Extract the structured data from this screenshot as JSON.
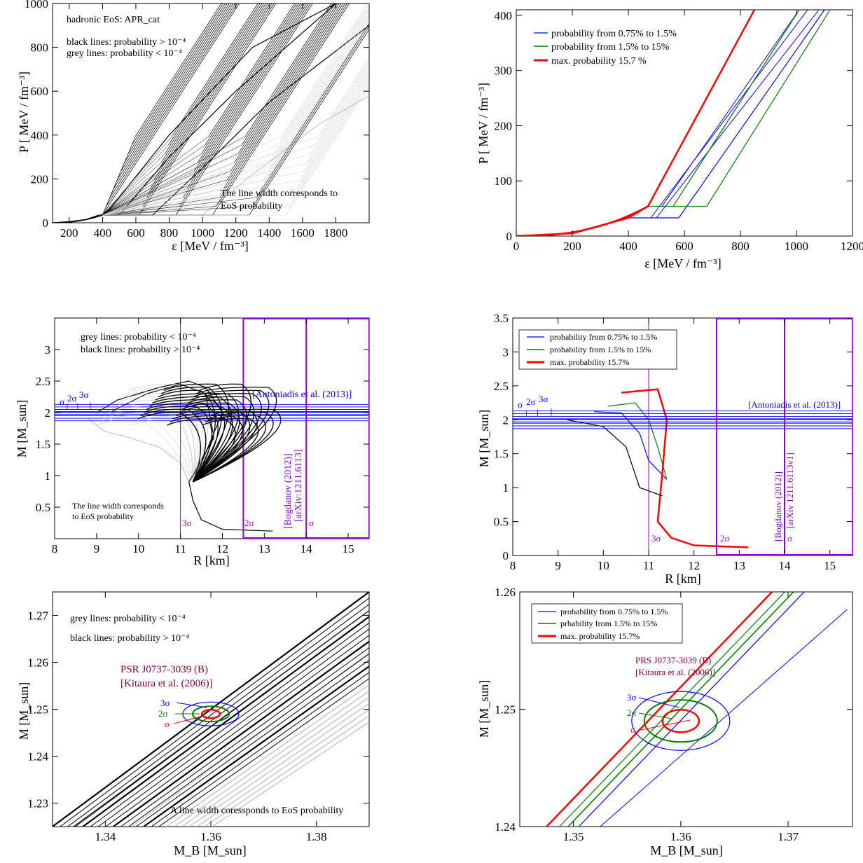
{
  "chart_data": [
    {
      "id": "p1",
      "type": "line",
      "xlabel": "ε  [MeV / fm⁻³]",
      "ylabel": "P  [ MeV / fm⁻³]",
      "xlim": [
        100,
        2000
      ],
      "ylim": [
        0,
        1000
      ],
      "xticks": [
        200,
        400,
        600,
        800,
        1000,
        1200,
        1400,
        1600,
        1800
      ],
      "yticks": [
        0,
        200,
        400,
        600,
        800,
        1000
      ],
      "annotations": [
        "hadronic EoS: APR_cat",
        "black lines: probability > 10⁻⁴",
        "grey lines: probability < 10⁻⁴",
        "The line width corresponds to",
        "EoS probability"
      ],
      "series": [
        {
          "color": "#000000",
          "x": [
            100,
            200,
            300,
            380,
            420,
            800,
            1300,
            1800
          ],
          "y": [
            0,
            5,
            15,
            35,
            40,
            400,
            800,
            1000
          ]
        },
        {
          "color": "#000000",
          "x": [
            380,
            500,
            800,
            1200,
            1800
          ],
          "y": [
            35,
            35,
            300,
            600,
            1000
          ]
        },
        {
          "color": "#000000",
          "x": [
            380,
            700,
            1000,
            1400,
            2000
          ],
          "y": [
            35,
            35,
            250,
            550,
            900
          ]
        },
        {
          "color": "#aaaaaa",
          "x": [
            380,
            1000,
            1300,
            1700,
            2000
          ],
          "y": [
            35,
            35,
            220,
            450,
            580
          ]
        }
      ]
    },
    {
      "id": "p2",
      "type": "line",
      "xlabel": "ε  [MeV / fm⁻³]",
      "ylabel": "P  [ MeV / fm⁻³]",
      "xlim": [
        0,
        1200
      ],
      "ylim": [
        0,
        410
      ],
      "xticks": [
        0,
        200,
        400,
        600,
        800,
        1000,
        1200
      ],
      "yticks": [
        0,
        100,
        200,
        300,
        400
      ],
      "series": [
        {
          "name": "probability from 0.75% to 1.5%",
          "color": "#0000ff",
          "x": [
            0,
            200,
            400,
            480,
            580,
            1100
          ],
          "y": [
            0,
            5,
            33,
            33,
            33,
            410
          ]
        },
        {
          "name": "probability from 1.5% to 15%",
          "color": "#008000",
          "x": [
            0,
            200,
            400,
            470,
            680,
            1120
          ],
          "y": [
            0,
            5,
            33,
            54,
            54,
            410
          ]
        },
        {
          "name": "max. probability 15.7 %",
          "color": "#ff0000",
          "x": [
            0,
            200,
            400,
            470,
            850
          ],
          "y": [
            0,
            5,
            33,
            54,
            410
          ]
        }
      ]
    },
    {
      "id": "p3",
      "type": "line",
      "xlabel": "R  [km]",
      "ylabel": "M  [M_sun]",
      "xlim": [
        8,
        15.5
      ],
      "ylim": [
        0,
        3.5
      ],
      "xticks": [
        8,
        9,
        10,
        11,
        12,
        13,
        14,
        15
      ],
      "yticks": [
        0.5,
        1,
        1.5,
        2,
        2.5,
        3
      ],
      "annotations": [
        "grey lines: probability < 10⁻⁴",
        "black lines: probability > 10⁻⁴",
        "The line width corresponds",
        "to EoS probability",
        "[Antoniadis et al. (2013)]",
        "[Bogdanov (2012)]",
        "[arXiv:1211.6113]",
        "σ",
        "2σ",
        "3σ"
      ],
      "series": [
        {
          "color": "#000000",
          "x": [
            13.2,
            12.0,
            11.5,
            11.3,
            11.2,
            11.5,
            12.0,
            11.6,
            11.2,
            10.5,
            9.5,
            9.0
          ],
          "y": [
            0.12,
            0.15,
            0.3,
            0.6,
            0.9,
            1.2,
            2.0,
            2.4,
            2.5,
            2.4,
            2.2,
            2.0
          ]
        },
        {
          "color": "#000000",
          "x": [
            11.2,
            11.8,
            11.6,
            11.0,
            10.2,
            9.3
          ],
          "y": [
            0.9,
            1.6,
            2.3,
            2.45,
            2.3,
            2.0
          ]
        },
        {
          "color": "#aaaaaa",
          "x": [
            11.2,
            11.0,
            10.5,
            9.8,
            9.2,
            8.8
          ],
          "y": [
            0.9,
            1.2,
            1.45,
            1.6,
            1.7,
            1.9
          ]
        }
      ]
    },
    {
      "id": "p4",
      "type": "line",
      "xlabel": "R  [km]",
      "ylabel": "M  [M_sun]",
      "xlim": [
        8,
        15.5
      ],
      "ylim": [
        0,
        3.5
      ],
      "xticks": [
        8,
        9,
        10,
        11,
        12,
        13,
        14,
        15
      ],
      "yticks": [
        0,
        0.5,
        1,
        1.5,
        2,
        2.5,
        3,
        3.5
      ],
      "annotations": [
        "[Antoniadis et al. (2013)]",
        "[Bogdanov (2012)]",
        "[arXiv 1211.6113v1]",
        "σ",
        "2σ",
        "3σ"
      ],
      "series": [
        {
          "name": "probability from 0.75% to 1.5%",
          "color": "#0000ff",
          "x": [
            11.4,
            11.0,
            10.8,
            10.4,
            9.8
          ],
          "y": [
            1.12,
            1.4,
            1.8,
            2.1,
            2.12
          ]
        },
        {
          "name": "probability from 1.5% to 15%",
          "color": "#008000",
          "x": [
            11.4,
            11.2,
            11.0,
            10.7,
            10.1
          ],
          "y": [
            1.12,
            1.6,
            2.0,
            2.25,
            2.2
          ]
        },
        {
          "name": "max. probability 15.7%",
          "color": "#ff0000",
          "x": [
            13.2,
            12.0,
            11.5,
            11.2,
            11.3,
            11.4,
            11.2,
            10.4
          ],
          "y": [
            0.12,
            0.15,
            0.26,
            0.5,
            1.2,
            2.0,
            2.45,
            2.4
          ]
        },
        {
          "color": "#000000",
          "x": [
            11.3,
            10.8,
            10.5,
            10.0,
            9.2
          ],
          "y": [
            0.88,
            1.0,
            1.6,
            1.9,
            2.0
          ]
        }
      ]
    },
    {
      "id": "p5",
      "type": "line",
      "xlabel": "M_B  [M_sun]",
      "ylabel": "M  [M_sun]",
      "xlim": [
        1.33,
        1.39
      ],
      "ylim": [
        1.225,
        1.275
      ],
      "xticks": [
        1.34,
        1.36,
        1.38
      ],
      "yticks": [
        1.23,
        1.24,
        1.25,
        1.26,
        1.27
      ],
      "annotations": [
        "grey lines: probability < 10⁻⁴",
        "black lines: probability > 10⁻⁴",
        "PSR J0737-3039 (B)",
        "[Kitaura et al. (2006)]",
        "A line width coressponds to EoS probability",
        "3σ",
        "2σ",
        "σ"
      ],
      "series": [
        {
          "color": "#000000",
          "x": [
            1.33,
            1.39
          ],
          "y": [
            1.225,
            1.275
          ]
        },
        {
          "color": "#000000",
          "x": [
            1.334,
            1.39
          ],
          "y": [
            1.225,
            1.271
          ]
        },
        {
          "color": "#aaaaaa",
          "x": [
            1.345,
            1.39
          ],
          "y": [
            1.225,
            1.262
          ]
        }
      ]
    },
    {
      "id": "p6",
      "type": "line",
      "xlabel": "M_B  [M_sun]",
      "ylabel": "M  [M_sun]",
      "xlim": [
        1.345,
        1.376
      ],
      "ylim": [
        1.24,
        1.26
      ],
      "xticks": [
        1.35,
        1.36,
        1.37
      ],
      "yticks": [
        1.24,
        1.25,
        1.26
      ],
      "annotations": [
        "PRS J0737-3039 (B)",
        "[Kitaura et al. (2006)]",
        "3σ",
        "2σ",
        "σ"
      ],
      "series": [
        {
          "name": "probability from 0.75% to 1.5%",
          "color": "#0000ff",
          "x": [
            1.3505,
            1.3715
          ],
          "y": [
            1.24,
            1.26
          ]
        },
        {
          "name": "prbability from 1.5% to 15%",
          "color": "#008000",
          "x": [
            1.3487,
            1.3697
          ],
          "y": [
            1.24,
            1.26
          ]
        },
        {
          "name": "max. probability 15.7%",
          "color": "#ff0000",
          "x": [
            1.3475,
            1.3685
          ],
          "y": [
            1.24,
            1.26
          ]
        }
      ]
    }
  ]
}
